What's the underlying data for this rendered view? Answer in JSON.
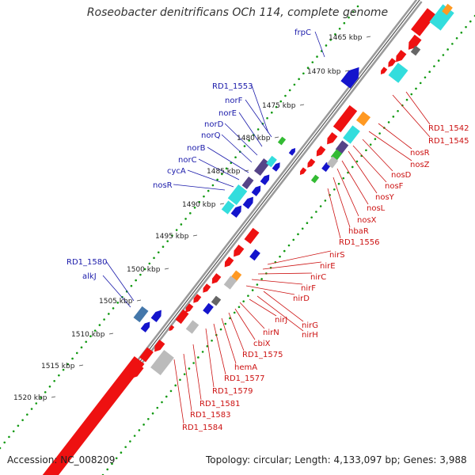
{
  "title": "Roseobacter denitrificans OCh 114, complete genome",
  "accession": "Accession: NC_008209",
  "summary": "Topology: circular; Length: 4,133,097 bp; Genes: 3,988",
  "colors": {
    "forward_label": "#1a1aaa",
    "reverse_label": "#cc1111",
    "forward_gene": "#1414cc",
    "reverse_gene": "#ee1111",
    "cyan_box": "#33dddd",
    "purple_box": "#554488",
    "orange_box": "#ff9922",
    "gray_box": "#bbbbbb",
    "dark_gray_box": "#666666",
    "green_box": "#33bb33",
    "steel_box": "#4477aa",
    "tick_dots": "#119911",
    "backbone": "#888888"
  },
  "kbp_ticks": [
    "1465 kbp",
    "1470 kbp",
    "1475 kbp",
    "1480 kbp",
    "1485 kbp",
    "1490 kbp",
    "1495 kbp",
    "1500 kbp",
    "1505 kbp",
    "1510 kbp",
    "1515 kbp",
    "1520 kbp"
  ],
  "forward_gene_labels": [
    "frpC",
    "RD1_1553",
    "norF",
    "norE",
    "norD",
    "norQ",
    "norB",
    "norC",
    "cycA",
    "nosR",
    "RD1_1580",
    "alkJ"
  ],
  "reverse_gene_labels": [
    "RD1_1542",
    "RD1_1545",
    "nosR",
    "nosZ",
    "nosD",
    "nosF",
    "nosY",
    "nosL",
    "nosX",
    "hbaR",
    "RD1_1556",
    "nirS",
    "nirE",
    "nirC",
    "nirF",
    "nirD",
    "nirG",
    "nirH",
    "nirJ",
    "nirN",
    "cbiX",
    "RD1_1575",
    "hemA",
    "RD1_1577",
    "RD1_1579",
    "RD1_1581",
    "RD1_1583",
    "RD1_1584"
  ]
}
